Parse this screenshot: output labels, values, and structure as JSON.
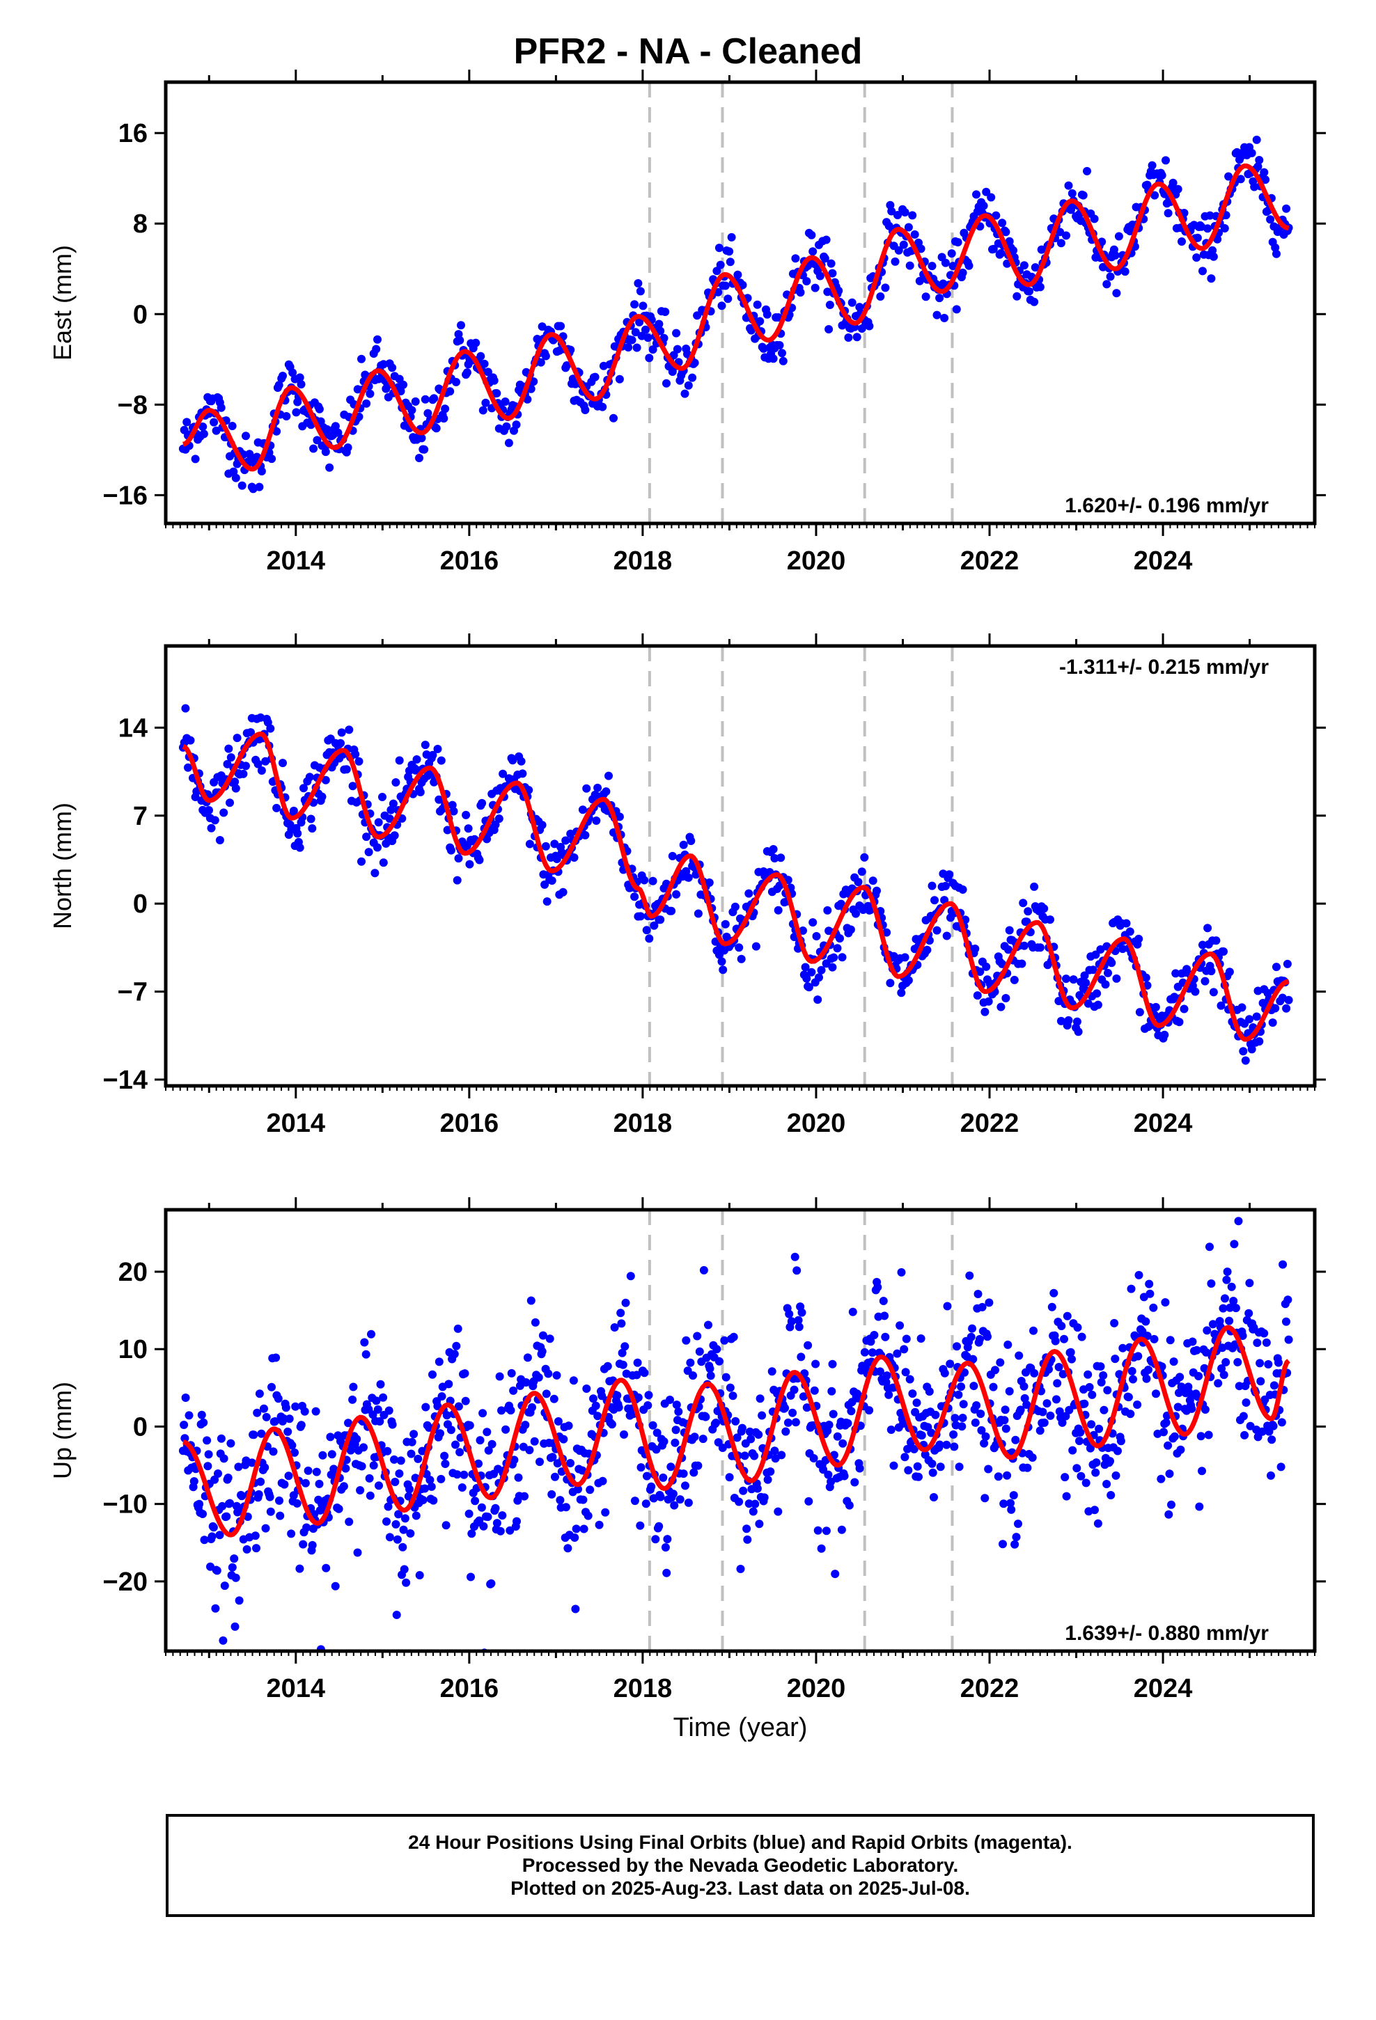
{
  "title": "PFR2  - NA - Cleaned",
  "chart_data": [
    {
      "type": "scatter",
      "panel": "east",
      "ylabel": "East (mm)",
      "xlabel": "",
      "xlim": [
        2012.5,
        2025.75
      ],
      "ylim": [
        -18.5,
        20.5
      ],
      "yticks": [
        16,
        8,
        0,
        -8,
        -16
      ],
      "xticks": [
        2014,
        2016,
        2018,
        2020,
        2022,
        2024
      ],
      "rate_label": "1.620+/- 0.196 mm/yr",
      "rate_position": "bottom-right",
      "series": [
        {
          "values": [
            -11.5,
            -8.5,
            -13.7,
            -6.5,
            -11.8,
            -5.0,
            -10.5,
            -3.3,
            -9.2,
            -1.8,
            -7.5,
            -0.2,
            -4.8,
            3.5,
            -2.3,
            5.0,
            -0.8,
            7.5,
            2.0,
            8.7,
            2.6,
            10.0,
            4.0,
            11.5,
            5.8,
            13.1,
            7.6
          ]
        }
      ],
      "x": [
        2012.7,
        2013.0,
        2013.5,
        2013.95,
        2014.45,
        2014.95,
        2015.45,
        2015.95,
        2016.45,
        2016.95,
        2017.45,
        2017.95,
        2018.45,
        2018.95,
        2019.45,
        2019.95,
        2020.45,
        2020.95,
        2021.45,
        2021.95,
        2022.45,
        2022.95,
        2023.45,
        2023.95,
        2024.45,
        2024.95,
        2025.45
      ],
      "offsets": [
        2018.08,
        2018.92,
        2020.56,
        2021.57
      ]
    },
    {
      "type": "scatter",
      "panel": "north",
      "ylabel": "North (mm)",
      "xlabel": "",
      "xlim": [
        2012.5,
        2025.75
      ],
      "ylim": [
        -14.5,
        20.5
      ],
      "yticks": [
        14,
        7,
        0,
        -7,
        -14
      ],
      "xticks": [
        2014,
        2016,
        2018,
        2020,
        2022,
        2024
      ],
      "rate_label": "-1.311+/- 0.215 mm/yr",
      "rate_position": "top-right",
      "series": [
        {
          "values": [
            12.5,
            8.2,
            13.5,
            6.8,
            12.2,
            5.3,
            10.8,
            4.0,
            9.6,
            2.6,
            8.3,
            1.2,
            -1.0,
            3.8,
            -3.2,
            2.3,
            -4.6,
            1.3,
            -5.8,
            0.0,
            -7.0,
            -1.5,
            -8.3,
            -2.8,
            -9.7,
            -4.0,
            -10.8,
            -6.2
          ]
        }
      ],
      "x": [
        2012.7,
        2013.0,
        2013.6,
        2013.95,
        2014.55,
        2014.95,
        2015.55,
        2015.95,
        2016.55,
        2016.95,
        2017.55,
        2017.95,
        2018.1,
        2018.55,
        2018.95,
        2019.55,
        2019.95,
        2020.55,
        2020.95,
        2021.55,
        2021.95,
        2022.55,
        2022.95,
        2023.55,
        2023.95,
        2024.55,
        2024.95,
        2025.45
      ],
      "offsets": [
        2018.08,
        2018.92,
        2020.56,
        2021.57
      ]
    },
    {
      "type": "scatter",
      "panel": "up",
      "ylabel": "Up (mm)",
      "xlabel": "Time (year)",
      "xlim": [
        2012.5,
        2025.75
      ],
      "ylim": [
        -29.0,
        28.0
      ],
      "yticks": [
        20,
        10,
        0,
        -10,
        -20
      ],
      "xticks": [
        2014,
        2016,
        2018,
        2020,
        2022,
        2024
      ],
      "rate_label": "1.639+/- 0.880 mm/yr",
      "rate_position": "bottom-right",
      "series": [
        {
          "values": [
            -2.0,
            -14.0,
            -0.3,
            -12.5,
            1.2,
            -10.8,
            2.8,
            -9.2,
            4.3,
            -7.5,
            6.0,
            -8.0,
            5.5,
            -7.0,
            7.0,
            -5.0,
            9.0,
            -3.0,
            8.2,
            -4.0,
            9.7,
            -2.5,
            11.3,
            -1.0,
            12.8,
            1.0,
            8.5
          ]
        }
      ],
      "x": [
        2012.7,
        2013.25,
        2013.75,
        2014.25,
        2014.75,
        2015.25,
        2015.75,
        2016.25,
        2016.75,
        2017.25,
        2017.75,
        2018.25,
        2018.75,
        2019.25,
        2019.75,
        2020.25,
        2020.75,
        2021.25,
        2021.75,
        2022.25,
        2022.75,
        2023.25,
        2023.75,
        2024.25,
        2024.75,
        2025.25,
        2025.45
      ],
      "offsets": [
        2018.08,
        2018.92,
        2020.56,
        2021.57
      ]
    }
  ],
  "footer": {
    "line1": "24 Hour Positions Using Final Orbits (blue) and Rapid Orbits (magenta).",
    "line2": "Processed by the Nevada Geodetic Laboratory.",
    "line3": "Plotted on 2025-Aug-23. Last data on 2025-Jul-08."
  },
  "colors": {
    "points": "#0000ff",
    "model": "#ff0000",
    "offset": "#c0c0c0",
    "axis": "#000000"
  }
}
